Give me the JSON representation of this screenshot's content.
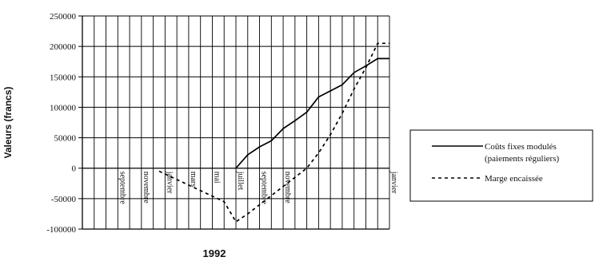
{
  "chart_data": {
    "type": "line",
    "xlabel": "1992",
    "ylabel": "Valeurs (francs)",
    "ylim": [
      -100000,
      250000
    ],
    "yticks": [
      "250000",
      "200000",
      "150000",
      "100000",
      "50000",
      "0",
      "-50000",
      "-100000"
    ],
    "x_tick_labels": [
      "septembre",
      "novembre",
      "janvier",
      "mars",
      "mai",
      "juillet",
      "septembre",
      "novembre",
      "janvier"
    ],
    "grid": true,
    "legend_position": "right",
    "series": [
      {
        "name": "Coûts fixes modulés (paiements réguliers)",
        "style": "solid",
        "color": "#000000",
        "points": [
          [
            13,
            0
          ],
          [
            14,
            22000
          ],
          [
            15,
            35000
          ],
          [
            16,
            45000
          ],
          [
            17,
            65000
          ],
          [
            18,
            78000
          ],
          [
            19,
            92000
          ],
          [
            20,
            117000
          ],
          [
            21,
            127000
          ],
          [
            22,
            137000
          ],
          [
            23,
            157000
          ],
          [
            24,
            168000
          ],
          [
            25,
            180000
          ],
          [
            26,
            180000
          ]
        ]
      },
      {
        "name": "Marge encaissée",
        "style": "dashed",
        "color": "#000000",
        "points": [
          [
            6.5,
            -5000
          ],
          [
            12,
            -55000
          ],
          [
            13,
            -88000
          ],
          [
            14,
            -75000
          ],
          [
            15,
            -60000
          ],
          [
            16,
            -45000
          ],
          [
            17,
            -30000
          ],
          [
            18,
            -15000
          ],
          [
            19,
            0
          ],
          [
            20,
            25000
          ],
          [
            21,
            55000
          ],
          [
            22,
            90000
          ],
          [
            23,
            130000
          ],
          [
            24,
            165000
          ],
          [
            25,
            205000
          ],
          [
            26,
            205000
          ]
        ]
      }
    ]
  }
}
